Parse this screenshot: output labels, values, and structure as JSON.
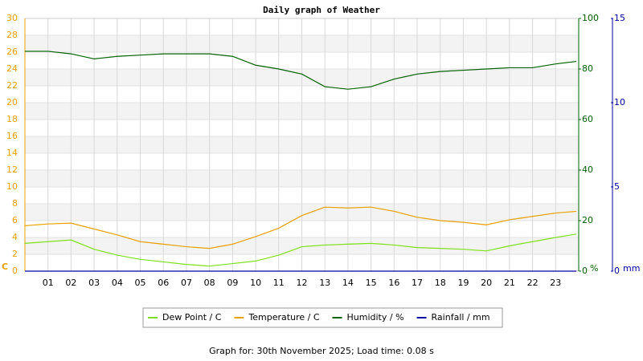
{
  "chart_data": {
    "type": "line",
    "title": "Daily graph of Weather",
    "x": [
      0,
      1,
      2,
      3,
      4,
      5,
      6,
      7,
      8,
      9,
      10,
      11,
      12,
      13,
      14,
      15,
      16,
      17,
      18,
      19,
      20,
      21,
      22,
      23,
      23.9
    ],
    "xlim": [
      0,
      24
    ],
    "xticks": [
      {
        "value": 1,
        "label": "01"
      },
      {
        "value": 2,
        "label": "02"
      },
      {
        "value": 3,
        "label": "03"
      },
      {
        "value": 4,
        "label": "04"
      },
      {
        "value": 5,
        "label": "05"
      },
      {
        "value": 6,
        "label": "06"
      },
      {
        "value": 7,
        "label": "07"
      },
      {
        "value": 8,
        "label": "08"
      },
      {
        "value": 9,
        "label": "09"
      },
      {
        "value": 10,
        "label": "10"
      },
      {
        "value": 11,
        "label": "11"
      },
      {
        "value": 12,
        "label": "12"
      },
      {
        "value": 13,
        "label": "13"
      },
      {
        "value": 14,
        "label": "14"
      },
      {
        "value": 15,
        "label": "15"
      },
      {
        "value": 16,
        "label": "16"
      },
      {
        "value": 17,
        "label": "17"
      },
      {
        "value": 18,
        "label": "18"
      },
      {
        "value": 19,
        "label": "19"
      },
      {
        "value": 20,
        "label": "20"
      },
      {
        "value": 21,
        "label": "21"
      },
      {
        "value": 22,
        "label": "22"
      },
      {
        "value": 23,
        "label": "23"
      }
    ],
    "ylim": [
      0,
      30
    ],
    "yticks": [
      0,
      2,
      4,
      6,
      8,
      10,
      12,
      14,
      16,
      18,
      20,
      22,
      24,
      26,
      28,
      30
    ],
    "y_unit": "C",
    "y2lim": [
      0,
      100
    ],
    "y2ticks": [
      0,
      20,
      40,
      60,
      80,
      100
    ],
    "y2_unit": "%",
    "y3lim": [
      0,
      15
    ],
    "y3ticks": [
      0,
      5,
      10,
      15
    ],
    "y3_unit": "mm",
    "grid": true,
    "series": [
      {
        "name": "Dew Point / C",
        "color": "#7ee01c",
        "values": [
          3.3,
          3.5,
          3.7,
          2.6,
          1.9,
          1.4,
          1.1,
          0.8,
          0.6,
          0.9,
          1.2,
          1.9,
          2.9,
          3.1,
          3.2,
          3.3,
          3.1,
          2.8,
          2.7,
          2.6,
          2.4,
          3.0,
          3.5,
          4.0,
          4.4
        ]
      },
      {
        "name": "Temperature / C",
        "color": "#e8a000",
        "values": [
          5.4,
          5.6,
          5.7,
          5.0,
          4.3,
          3.5,
          3.2,
          2.9,
          2.7,
          3.2,
          4.1,
          5.1,
          6.6,
          7.6,
          7.5,
          7.6,
          7.1,
          6.4,
          6.0,
          5.8,
          5.5,
          6.1,
          6.5,
          6.9,
          7.1
        ]
      },
      {
        "name": "Humidity / %",
        "color": "#006000",
        "axis": "y2",
        "values": [
          87,
          87,
          86,
          84,
          85,
          85.5,
          86,
          86,
          86,
          85,
          81.5,
          80,
          78,
          73,
          72,
          73,
          76,
          78,
          79,
          79.5,
          80,
          80.5,
          80.5,
          82,
          83
        ]
      },
      {
        "name": "Rainfall / mm",
        "color": "#0000a0",
        "axis": "y3",
        "values": [
          0,
          0,
          0,
          0,
          0,
          0,
          0,
          0,
          0,
          0,
          0,
          0,
          0,
          0,
          0,
          0,
          0,
          0,
          0,
          0,
          0,
          0,
          0,
          0,
          0
        ]
      }
    ],
    "footer": "Graph for: 30th November 2025; Load time: 0.08 s"
  }
}
